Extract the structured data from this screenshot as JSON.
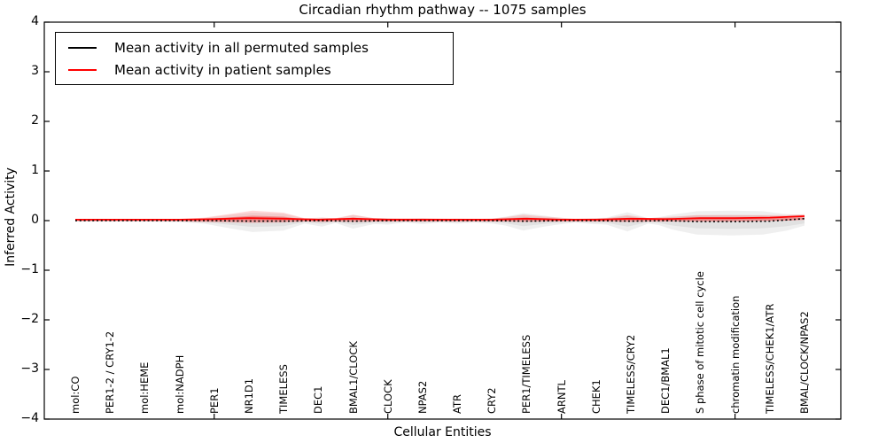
{
  "chart_data": {
    "type": "line",
    "title": "Circadian rhythm pathway -- 1075 samples",
    "xlabel": "Cellular Entities",
    "ylabel": "Inferred Activity",
    "ylim": [
      -4,
      4
    ],
    "grid": false,
    "legend_position": "upper left",
    "background_color": "#ffffff",
    "frame_color": "#000000",
    "ytick_values": [
      4,
      3,
      2,
      1,
      0,
      -1,
      -2,
      -3,
      -4
    ],
    "ytick_labels": [
      "4",
      "3",
      "2",
      "1",
      "0",
      "−1",
      "−2",
      "−3",
      "−4"
    ],
    "xtick_indices": [
      4,
      9,
      14,
      19
    ],
    "categories": [
      "mol:CO",
      "PER1-2 / CRY1-2",
      "mol:HEME",
      "mol:NADPH",
      "PER1",
      "NR1D1",
      "TIMELESS",
      "DEC1",
      "BMAL1/CLOCK",
      "CLOCK",
      "NPAS2",
      "ATR",
      "CRY2",
      "PER1/TIMELESS",
      "ARNTL",
      "CHEK1",
      "TIMELESS/CRY2",
      "DEC1/BMAL1",
      "S phase of mitotic cell cycle",
      "chromatin modification",
      "TIMELESS/CHEK1/ATR",
      "BMAL/CLOCK/NPAS2"
    ],
    "series": [
      {
        "name": "Mean activity in all permuted samples",
        "color": "#000000",
        "style": "dotted",
        "values": [
          0,
          0,
          0,
          0,
          0,
          -0.01,
          -0.01,
          0,
          -0.01,
          0,
          0,
          0,
          0,
          -0.01,
          0,
          0,
          -0.01,
          0,
          -0.02,
          -0.02,
          -0.01,
          0.04
        ]
      },
      {
        "name": "Mean activity in patient samples",
        "color": "#ff0000",
        "style": "solid",
        "values": [
          0.02,
          0.02,
          0.02,
          0.02,
          0.03,
          0.05,
          0.04,
          0.02,
          0.04,
          0.02,
          0.02,
          0.02,
          0.02,
          0.04,
          0.02,
          0.02,
          0.04,
          0.03,
          0.05,
          0.05,
          0.06,
          0.09
        ]
      }
    ],
    "bands": {
      "permuted_range": {
        "color": "#999999",
        "points": [
          [
            0,
            0.02,
            -0.02
          ],
          [
            1,
            0.02,
            -0.02
          ],
          [
            2,
            0.02,
            -0.02
          ],
          [
            3,
            0.02,
            -0.03
          ],
          [
            3.7,
            0.05,
            -0.06
          ],
          [
            4.5,
            0.12,
            -0.16
          ],
          [
            5.1,
            0.16,
            -0.23
          ],
          [
            6,
            0.14,
            -0.2
          ],
          [
            6.6,
            0.04,
            -0.06
          ],
          [
            7.1,
            0.06,
            -0.12
          ],
          [
            7.5,
            0.04,
            -0.05
          ],
          [
            8,
            0.11,
            -0.16
          ],
          [
            8.6,
            0.05,
            -0.07
          ],
          [
            9,
            0.05,
            -0.08
          ],
          [
            9.5,
            0.03,
            -0.04
          ],
          [
            10,
            0.05,
            -0.07
          ],
          [
            10.5,
            0.03,
            -0.04
          ],
          [
            11,
            0.04,
            -0.06
          ],
          [
            11.5,
            0.03,
            -0.04
          ],
          [
            12,
            0.04,
            -0.06
          ],
          [
            12.4,
            0.08,
            -0.1
          ],
          [
            12.9,
            0.15,
            -0.2
          ],
          [
            13.5,
            0.1,
            -0.12
          ],
          [
            13.9,
            0.06,
            -0.08
          ],
          [
            14.4,
            0.03,
            -0.04
          ],
          [
            14.9,
            0.05,
            -0.07
          ],
          [
            15.3,
            0.06,
            -0.08
          ],
          [
            15.9,
            0.17,
            -0.22
          ],
          [
            16.5,
            0.05,
            -0.06
          ],
          [
            16.8,
            0.07,
            -0.09
          ],
          [
            17.2,
            0.12,
            -0.18
          ],
          [
            17.9,
            0.19,
            -0.28
          ],
          [
            18.9,
            0.2,
            -0.3
          ],
          [
            19.8,
            0.19,
            -0.28
          ],
          [
            20.5,
            0.13,
            -0.2
          ],
          [
            21,
            0.11,
            -0.1
          ]
        ]
      },
      "patient_range": {
        "color": "#ff0000",
        "points": [
          [
            0,
            0.025,
            -0.01
          ],
          [
            3,
            0.03,
            -0.015
          ],
          [
            3.7,
            0.06,
            -0.03
          ],
          [
            4.5,
            0.14,
            -0.04
          ],
          [
            5.1,
            0.2,
            -0.05
          ],
          [
            6,
            0.16,
            -0.04
          ],
          [
            6.6,
            0.05,
            -0.02
          ],
          [
            7.1,
            0.06,
            -0.03
          ],
          [
            7.5,
            0.05,
            -0.02
          ],
          [
            8,
            0.12,
            -0.03
          ],
          [
            8.6,
            0.05,
            -0.02
          ],
          [
            9,
            0.05,
            -0.02
          ],
          [
            10,
            0.05,
            -0.02
          ],
          [
            11,
            0.04,
            -0.02
          ],
          [
            12,
            0.04,
            -0.02
          ],
          [
            12.4,
            0.07,
            -0.02
          ],
          [
            12.9,
            0.12,
            -0.03
          ],
          [
            13.5,
            0.08,
            -0.02
          ],
          [
            14.4,
            0.04,
            -0.02
          ],
          [
            15.3,
            0.05,
            -0.02
          ],
          [
            15.9,
            0.11,
            -0.03
          ],
          [
            16.5,
            0.05,
            -0.02
          ],
          [
            17.2,
            0.08,
            -0.02
          ],
          [
            17.9,
            0.11,
            -0.02
          ],
          [
            18.9,
            0.11,
            -0.02
          ],
          [
            19.8,
            0.11,
            -0.01
          ],
          [
            20.5,
            0.11,
            0
          ],
          [
            21,
            0.13,
            0.03
          ]
        ]
      }
    }
  }
}
